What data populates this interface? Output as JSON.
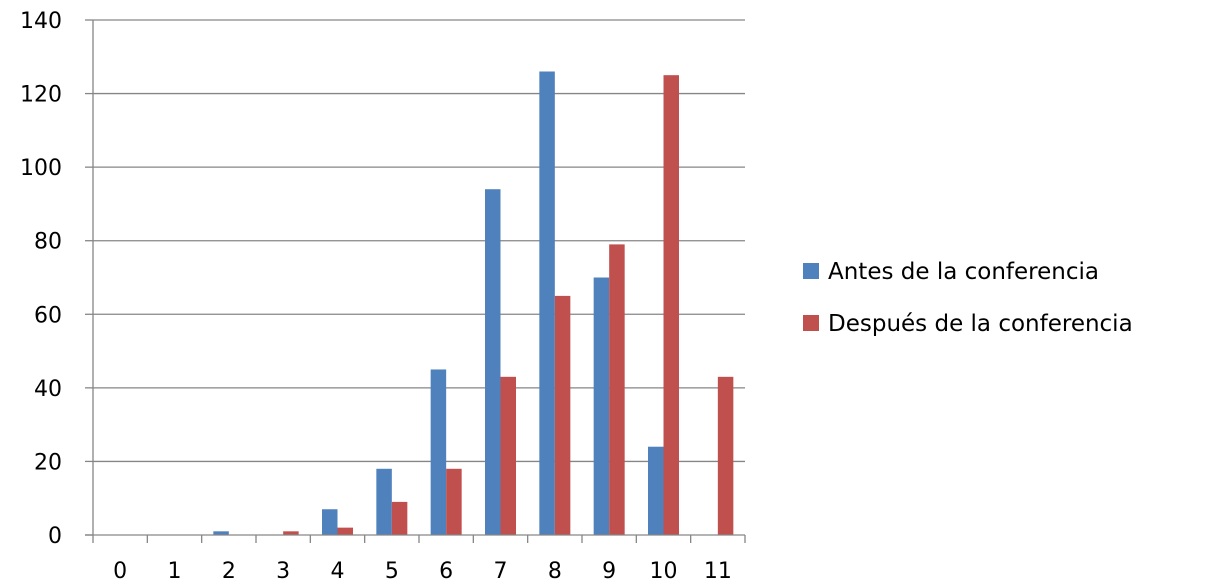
{
  "chart_data": {
    "type": "bar",
    "categories": [
      "0",
      "1",
      "2",
      "3",
      "4",
      "5",
      "6",
      "7",
      "8",
      "9",
      "10",
      "11"
    ],
    "series": [
      {
        "name": "Antes de la conferencia",
        "color": "#4F81BD",
        "values": [
          0,
          0,
          1,
          0,
          7,
          18,
          45,
          94,
          126,
          70,
          24,
          0
        ]
      },
      {
        "name": "Después de la conferencia",
        "color": "#C0504D",
        "values": [
          0,
          0,
          0,
          1,
          2,
          9,
          18,
          43,
          65,
          79,
          125,
          43
        ]
      }
    ],
    "yticks": [
      "0",
      "20",
      "40",
      "60",
      "80",
      "100",
      "120",
      "140"
    ],
    "ylim": [
      0,
      140
    ],
    "grid": true,
    "legend": "right",
    "title": "",
    "xlabel": "",
    "ylabel": ""
  }
}
